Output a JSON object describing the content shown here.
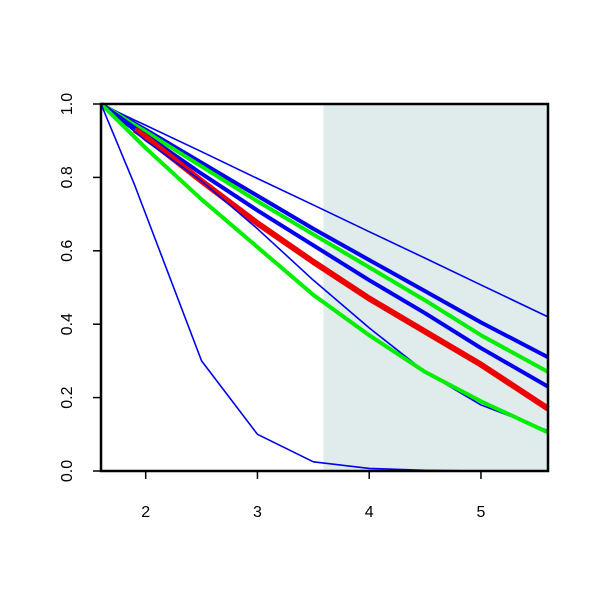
{
  "chart_data": {
    "type": "line",
    "x": [
      1.6,
      1.9,
      2,
      2.5,
      3,
      3.5,
      4,
      4.5,
      5,
      5.6
    ],
    "series": [
      {
        "color": "#0000ee",
        "width": 1.6,
        "values": [
          1,
          0.956,
          0.942,
          0.87,
          0.797,
          0.725,
          0.652,
          0.58,
          0.507,
          0.42
        ]
      },
      {
        "color": "#0000ee",
        "width": 4,
        "values": [
          1,
          0.947,
          0.93,
          0.84,
          0.75,
          0.66,
          0.575,
          0.49,
          0.405,
          0.31
        ]
      },
      {
        "color": "#00ee00",
        "width": 4,
        "values": [
          1,
          0.943,
          0.925,
          0.83,
          0.735,
          0.645,
          0.555,
          0.465,
          0.37,
          0.27
        ]
      },
      {
        "color": "#0000ee",
        "width": 4,
        "values": [
          1,
          0.935,
          0.915,
          0.81,
          0.71,
          0.615,
          0.52,
          0.43,
          0.335,
          0.23
        ]
      },
      {
        "color": "#ee0000",
        "width": 6,
        "values": [
          null,
          0.93,
          0.91,
          0.79,
          0.675,
          0.57,
          0.47,
          0.38,
          0.29,
          0.17
        ]
      },
      {
        "color": "#0000ee",
        "width": 1.6,
        "values": [
          1,
          0.925,
          0.9,
          0.79,
          0.66,
          0.52,
          0.39,
          0.27,
          0.18,
          0.11
        ]
      },
      {
        "color": "#00ee00",
        "width": 4,
        "values": [
          1,
          0.91,
          0.88,
          0.74,
          0.61,
          0.48,
          0.37,
          0.27,
          0.19,
          0.105
        ]
      },
      {
        "color": "#0000ee",
        "width": 1.6,
        "values": [
          1,
          0.78,
          0.7,
          0.3,
          0.1,
          0.025,
          0.007,
          0.002,
          0,
          0
        ]
      }
    ],
    "xlim": [
      1.6,
      5.6
    ],
    "ylim": [
      0,
      1
    ],
    "xticks": [
      2,
      3,
      4,
      5
    ],
    "yticks": [
      {
        "value": 0,
        "label": "0.0"
      },
      0.2,
      0.4,
      0.6,
      0.8,
      {
        "value": 1,
        "label": "1.0"
      }
    ],
    "highlight": {
      "xlim": [
        3.59,
        5.6
      ],
      "color": "#e0ecec"
    }
  }
}
